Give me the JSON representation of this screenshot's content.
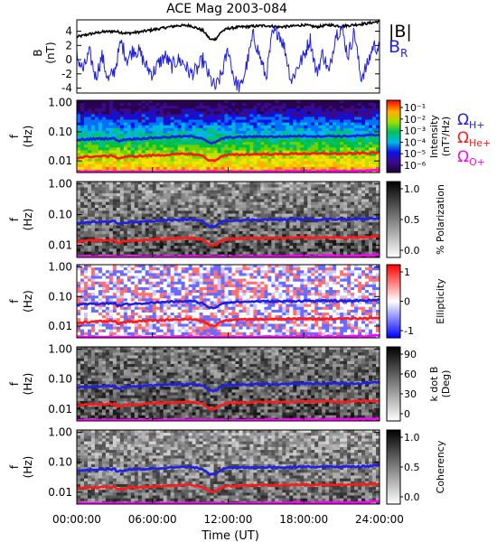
{
  "title": "ACE Mag 2003-084",
  "time_axis": {
    "label": "Time (UT)",
    "ticks": [
      "00:00:00",
      "06:00:00",
      "12:00:00",
      "18:00:00",
      "24:00:00"
    ],
    "range_hours": [
      0,
      24
    ]
  },
  "colors": {
    "B_total": "#000000",
    "B_R": "#1f1fe6",
    "omega_H": "#1f1fe6",
    "omega_He": "#ff1a1a",
    "omega_O": "#ff00ff"
  },
  "chart_data": [
    {
      "type": "line",
      "panel": "magnetic_field",
      "ylabel_top": "B",
      "ylabel_unit": "(nT)",
      "ylim": [
        -4.7,
        5.6
      ],
      "yticks": [
        "4",
        "2",
        "0",
        "-2",
        "-4"
      ],
      "ytick_values": [
        4,
        2,
        0,
        -2,
        -4
      ],
      "grid": false,
      "series": [
        {
          "name": "|B|",
          "color": "#000000",
          "x_hours": [
            0,
            1,
            2,
            3,
            4,
            5,
            6,
            7,
            8,
            9,
            10,
            10.6,
            11,
            11.5,
            12,
            13,
            14,
            15,
            16,
            17,
            18,
            19,
            20,
            21,
            22,
            23,
            24
          ],
          "values": [
            3.2,
            3.6,
            3.9,
            4.0,
            3.7,
            3.9,
            4.2,
            4.5,
            4.8,
            4.8,
            4.1,
            2.8,
            2.9,
            4.0,
            4.4,
            4.6,
            4.7,
            4.8,
            4.6,
            4.7,
            4.9,
            4.6,
            4.9,
            4.7,
            4.9,
            5.1,
            5.4
          ]
        },
        {
          "name": "B",
          "subscript": "R",
          "color": "#1f1fe6",
          "x_hours": [
            0,
            0.5,
            1,
            1.5,
            2,
            2.5,
            3,
            3.5,
            4,
            4.5,
            5,
            5.5,
            6,
            6.5,
            7,
            7.5,
            8,
            8.5,
            9,
            9.5,
            10,
            10.5,
            11,
            11.5,
            12,
            12.5,
            13,
            13.5,
            14,
            14.5,
            15,
            15.5,
            16,
            16.5,
            17,
            17.5,
            18,
            18.5,
            19,
            19.5,
            20,
            20.5,
            21,
            21.5,
            22,
            22.5,
            23,
            23.5,
            24
          ],
          "values": [
            0.5,
            -1.5,
            1.0,
            -2.5,
            0.5,
            -3.0,
            -1.5,
            2.5,
            0.0,
            1.5,
            1.0,
            -1.0,
            -2.0,
            -0.5,
            0.5,
            -1.0,
            0.0,
            -0.5,
            -2.0,
            -1.5,
            0.0,
            -2.5,
            -4.0,
            -2.0,
            1.5,
            -3.0,
            -4.0,
            -0.5,
            3.5,
            0.5,
            -2.5,
            3.5,
            4.0,
            1.5,
            -3.0,
            -1.0,
            0.5,
            3.0,
            -2.0,
            1.0,
            -2.0,
            3.5,
            4.5,
            0.5,
            4.0,
            -2.5,
            -1.0,
            2.0,
            1.5
          ]
        }
      ]
    },
    {
      "type": "heatmap",
      "panel": "intensity",
      "ylabel_top": "f",
      "ylabel_unit": "(Hz)",
      "yticks": [
        "1.00",
        "0.10",
        "0.01"
      ],
      "ytick_values": [
        1.0,
        0.1,
        0.01
      ],
      "ylim": [
        0.004,
        1.2
      ],
      "yscale": "log",
      "colorbar": {
        "label_top": "Intensity",
        "label_bottom": "(nT²/Hz)",
        "ticks": [
          "10⁻¹",
          "10⁻²",
          "10⁻³",
          "10⁻⁴",
          "10⁻⁵",
          "10⁻⁶"
        ],
        "colormap": "rainbow"
      }
    },
    {
      "type": "heatmap",
      "panel": "polarization",
      "ylabel_top": "f",
      "ylabel_unit": "(Hz)",
      "yticks": [
        "1.00",
        "0.10",
        "0.01"
      ],
      "ytick_values": [
        1.0,
        0.1,
        0.01
      ],
      "yscale": "log",
      "colorbar": {
        "label": "% Polarization",
        "ticks": [
          "1.0",
          "0.5",
          "0.0"
        ],
        "colormap": "gray"
      }
    },
    {
      "type": "heatmap",
      "panel": "ellipticity",
      "ylabel_top": "f",
      "ylabel_unit": "(Hz)",
      "yticks": [
        "1.00",
        "0.10",
        "0.01"
      ],
      "ytick_values": [
        1.0,
        0.1,
        0.01
      ],
      "yscale": "log",
      "colorbar": {
        "label": "Ellipticity",
        "ticks": [
          "1",
          "0",
          "-1"
        ],
        "colormap": "blue-white-red"
      }
    },
    {
      "type": "heatmap",
      "panel": "k_dot_b",
      "ylabel_top": "f",
      "ylabel_unit": "(Hz)",
      "yticks": [
        "1.00",
        "0.10",
        "0.01"
      ],
      "ytick_values": [
        1.0,
        0.1,
        0.01
      ],
      "yscale": "log",
      "colorbar": {
        "label_top": "k dot B",
        "label_bottom": "(Deg)",
        "ticks": [
          "90",
          "60",
          "30",
          "0"
        ],
        "colormap": "gray"
      }
    },
    {
      "type": "heatmap",
      "panel": "coherency",
      "ylabel_top": "f",
      "ylabel_unit": "(Hz)",
      "yticks": [
        "1.00",
        "0.10",
        "0.01"
      ],
      "ytick_values": [
        1.0,
        0.1,
        0.01
      ],
      "yscale": "log",
      "colorbar": {
        "label": "Coherency",
        "ticks": [
          "1.0",
          "0.5",
          "0.0"
        ],
        "colormap": "gray"
      }
    }
  ],
  "gyrofrequency_lines": {
    "x_hours": [
      0,
      1,
      2,
      3,
      3.2,
      4,
      5,
      6,
      7,
      8,
      9,
      10,
      10.5,
      11,
      11.5,
      12,
      13,
      14,
      15,
      16,
      17,
      18,
      19,
      20,
      21,
      22,
      23,
      24
    ],
    "H+": [
      0.052,
      0.056,
      0.058,
      0.059,
      0.048,
      0.056,
      0.058,
      0.062,
      0.065,
      0.068,
      0.07,
      0.06,
      0.04,
      0.042,
      0.058,
      0.064,
      0.066,
      0.068,
      0.069,
      0.068,
      0.07,
      0.072,
      0.07,
      0.072,
      0.07,
      0.072,
      0.074,
      0.078
    ],
    "He+": [
      0.013,
      0.014,
      0.0145,
      0.015,
      0.012,
      0.014,
      0.0145,
      0.0155,
      0.016,
      0.017,
      0.0175,
      0.015,
      0.01,
      0.0105,
      0.0145,
      0.016,
      0.0165,
      0.017,
      0.0172,
      0.017,
      0.0175,
      0.018,
      0.0175,
      0.018,
      0.0175,
      0.018,
      0.0185,
      0.0195
    ],
    "O+": [
      0.0033,
      0.0035,
      0.0036,
      0.0037,
      0.003,
      0.0035,
      0.0036,
      0.0039,
      0.004,
      0.0042,
      0.0044,
      0.0037,
      0.0025,
      0.0026,
      0.0036,
      0.004,
      0.0041,
      0.0042,
      0.0043,
      0.0042,
      0.0044,
      0.0045,
      0.0044,
      0.0045,
      0.0044,
      0.0045,
      0.0046,
      0.0049
    ]
  },
  "legend": {
    "B_total": "|B|",
    "B_R_base": "B",
    "B_R_sub": "R",
    "omega_symbol": "Ω",
    "H_sub": "H+",
    "He_sub": "He+",
    "O_sub": "O+"
  }
}
